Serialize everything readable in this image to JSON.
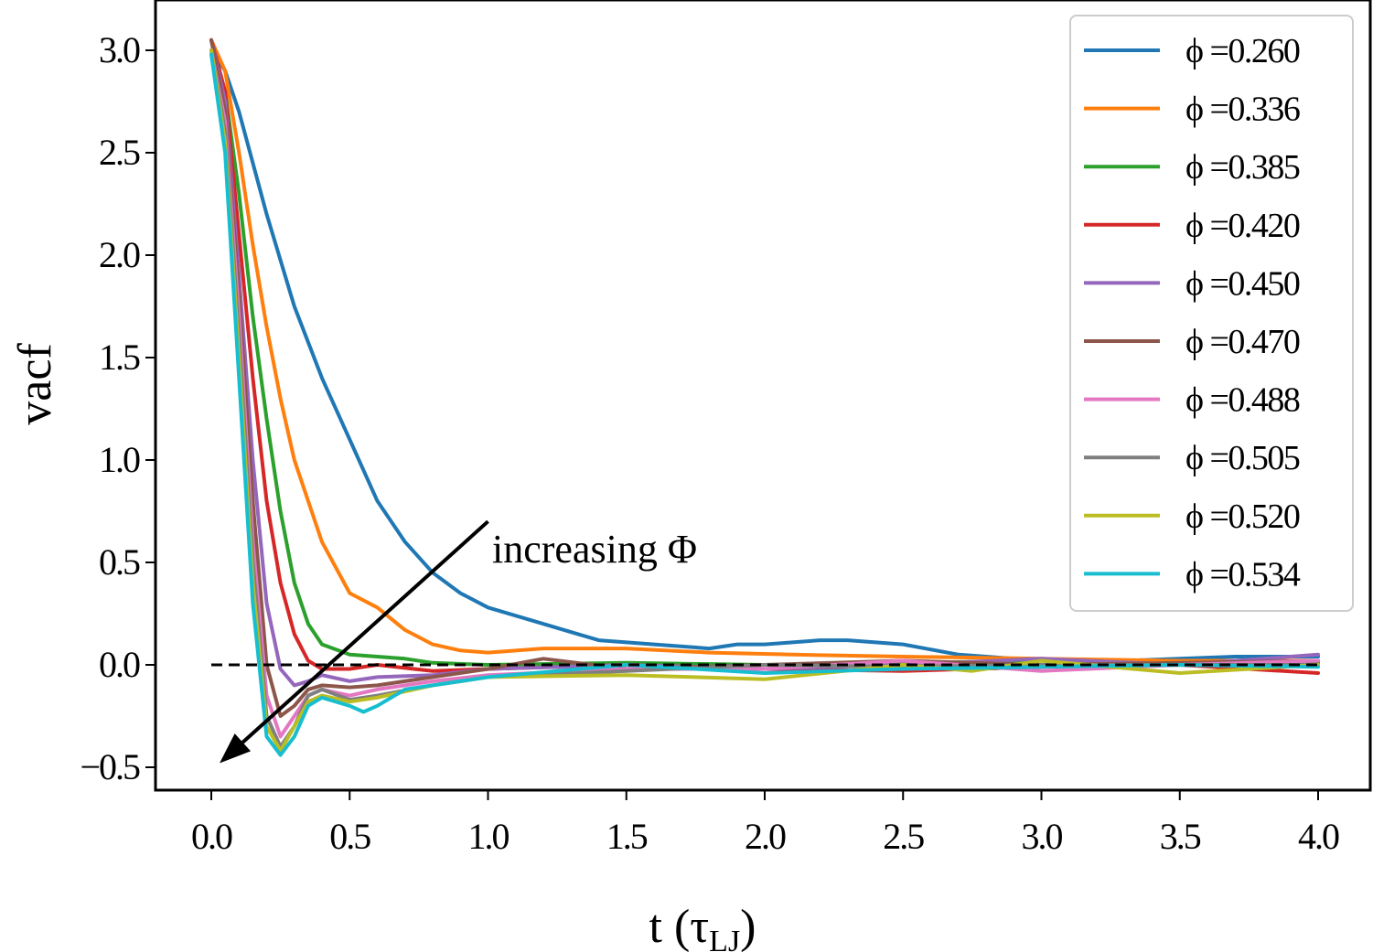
{
  "chart_data": {
    "type": "line",
    "xlabel": "t (τ",
    "xlabel_sub": "LJ",
    "xlabel_close": ")",
    "ylabel": "vacf",
    "xlim": [
      -0.2,
      4.05
    ],
    "ylim": [
      -0.6,
      3.2
    ],
    "x_ticks": [
      0.0,
      0.5,
      1.0,
      1.5,
      2.0,
      2.5,
      3.0,
      3.5,
      4.0
    ],
    "x_tick_labels": [
      "0.0",
      "0.5",
      "1.0",
      "1.5",
      "2.0",
      "2.5",
      "3.0",
      "3.5",
      "4.0"
    ],
    "y_ticks": [
      -0.5,
      0.0,
      0.5,
      1.0,
      1.5,
      2.0,
      2.5,
      3.0
    ],
    "y_tick_labels": [
      "−0.5",
      "0.0",
      "0.5",
      "1.0",
      "1.5",
      "2.0",
      "2.5",
      "3.0"
    ],
    "grid": false,
    "legend_position": "top-right",
    "reference_line": {
      "y": 0.0,
      "style": "dashed",
      "color": "#000000",
      "x_range": [
        0.0,
        4.0
      ]
    },
    "annotation": {
      "text": "increasing Φ",
      "arrow_from": [
        1.0,
        0.7
      ],
      "arrow_to": [
        0.03,
        -0.48
      ]
    },
    "series": [
      {
        "name": "ϕ =0.260",
        "color": "#1f77b4",
        "x": [
          0,
          0.05,
          0.1,
          0.15,
          0.2,
          0.3,
          0.4,
          0.5,
          0.6,
          0.7,
          0.8,
          0.9,
          1.0,
          1.2,
          1.4,
          1.6,
          1.8,
          1.9,
          2.0,
          2.2,
          2.3,
          2.5,
          2.7,
          2.9,
          3.1,
          3.3,
          3.5,
          3.7,
          4.0
        ],
        "y": [
          3.0,
          2.9,
          2.7,
          2.45,
          2.2,
          1.75,
          1.4,
          1.1,
          0.8,
          0.6,
          0.45,
          0.35,
          0.28,
          0.2,
          0.12,
          0.1,
          0.08,
          0.1,
          0.1,
          0.12,
          0.12,
          0.1,
          0.05,
          0.03,
          0.02,
          0.02,
          0.03,
          0.04,
          0.04
        ]
      },
      {
        "name": "ϕ =0.336",
        "color": "#ff7f0e",
        "x": [
          0,
          0.05,
          0.1,
          0.15,
          0.2,
          0.25,
          0.3,
          0.4,
          0.5,
          0.6,
          0.7,
          0.8,
          0.9,
          1.0,
          1.2,
          1.5,
          1.8,
          2.1,
          2.5,
          3.0,
          3.5,
          4.0
        ],
        "y": [
          3.05,
          2.9,
          2.5,
          2.05,
          1.65,
          1.3,
          1.0,
          0.6,
          0.35,
          0.28,
          0.17,
          0.1,
          0.07,
          0.06,
          0.08,
          0.08,
          0.06,
          0.05,
          0.04,
          0.03,
          0.02,
          0.02
        ]
      },
      {
        "name": "ϕ =0.385",
        "color": "#2ca02c",
        "x": [
          0,
          0.05,
          0.1,
          0.15,
          0.2,
          0.25,
          0.3,
          0.35,
          0.4,
          0.5,
          0.6,
          0.7,
          0.8,
          1.0,
          1.5,
          2.0,
          2.5,
          3.0,
          3.5,
          4.0
        ],
        "y": [
          3.0,
          2.8,
          2.3,
          1.7,
          1.2,
          0.75,
          0.4,
          0.2,
          0.1,
          0.05,
          0.04,
          0.03,
          0.01,
          0.0,
          0.01,
          0.0,
          0.01,
          0.02,
          0.0,
          0.01
        ]
      },
      {
        "name": "ϕ =0.420",
        "color": "#d62728",
        "x": [
          0,
          0.05,
          0.1,
          0.15,
          0.2,
          0.25,
          0.3,
          0.35,
          0.4,
          0.5,
          0.6,
          0.8,
          1.0,
          1.5,
          2.0,
          2.5,
          3.0,
          3.5,
          4.0
        ],
        "y": [
          3.05,
          2.8,
          2.1,
          1.4,
          0.8,
          0.4,
          0.15,
          0.02,
          -0.02,
          -0.02,
          0.0,
          -0.03,
          -0.02,
          0.0,
          -0.02,
          -0.03,
          -0.01,
          0.0,
          -0.04
        ]
      },
      {
        "name": "ϕ =0.450",
        "color": "#9467bd",
        "x": [
          0,
          0.05,
          0.1,
          0.15,
          0.2,
          0.25,
          0.3,
          0.35,
          0.4,
          0.5,
          0.6,
          0.8,
          1.0,
          1.5,
          2.0,
          2.5,
          3.0,
          3.5,
          4.0
        ],
        "y": [
          3.05,
          2.75,
          1.9,
          1.0,
          0.3,
          -0.02,
          -0.1,
          -0.08,
          -0.05,
          -0.08,
          -0.06,
          -0.05,
          -0.02,
          0.0,
          -0.02,
          0.0,
          0.03,
          0.0,
          0.05
        ]
      },
      {
        "name": "ϕ =0.470",
        "color": "#8c564b",
        "x": [
          0,
          0.05,
          0.1,
          0.15,
          0.2,
          0.25,
          0.3,
          0.35,
          0.4,
          0.5,
          0.6,
          0.8,
          1.0,
          1.2,
          1.5,
          2.0,
          2.5,
          3.0,
          3.5,
          4.0
        ],
        "y": [
          3.05,
          2.7,
          1.8,
          0.8,
          0.0,
          -0.25,
          -0.2,
          -0.12,
          -0.1,
          -0.11,
          -0.1,
          -0.06,
          -0.02,
          0.03,
          -0.02,
          0.0,
          0.02,
          0.0,
          0.01,
          0.02
        ]
      },
      {
        "name": "ϕ =0.488",
        "color": "#e377c2",
        "x": [
          0,
          0.05,
          0.1,
          0.15,
          0.2,
          0.25,
          0.3,
          0.35,
          0.4,
          0.5,
          0.6,
          0.8,
          1.0,
          1.5,
          2.0,
          2.5,
          3.0,
          3.5,
          4.0
        ],
        "y": [
          3.0,
          2.65,
          1.7,
          0.6,
          -0.15,
          -0.35,
          -0.25,
          -0.15,
          -0.12,
          -0.15,
          -0.12,
          -0.08,
          -0.05,
          -0.02,
          -0.02,
          0.02,
          -0.03,
          0.0,
          0.02
        ]
      },
      {
        "name": "ϕ =0.505",
        "color": "#7f7f7f",
        "x": [
          0,
          0.05,
          0.1,
          0.15,
          0.2,
          0.25,
          0.3,
          0.35,
          0.4,
          0.5,
          0.6,
          0.8,
          1.0,
          1.5,
          2.0,
          2.5,
          3.0,
          3.5,
          4.0
        ],
        "y": [
          3.0,
          2.6,
          1.6,
          0.5,
          -0.25,
          -0.4,
          -0.3,
          -0.15,
          -0.12,
          -0.17,
          -0.15,
          -0.1,
          -0.06,
          -0.03,
          0.0,
          -0.01,
          0.0,
          0.0,
          0.0
        ]
      },
      {
        "name": "ϕ =0.520",
        "color": "#bcbd22",
        "x": [
          0,
          0.05,
          0.1,
          0.15,
          0.2,
          0.25,
          0.3,
          0.35,
          0.4,
          0.5,
          0.6,
          0.8,
          1.0,
          1.5,
          2.0,
          2.5,
          2.75,
          3.0,
          3.5,
          4.0
        ],
        "y": [
          3.0,
          2.55,
          1.5,
          0.4,
          -0.3,
          -0.42,
          -0.3,
          -0.18,
          -0.15,
          -0.18,
          -0.16,
          -0.1,
          -0.06,
          -0.05,
          -0.07,
          0.0,
          -0.03,
          0.02,
          -0.04,
          0.0
        ]
      },
      {
        "name": "ϕ =0.534",
        "color": "#17becf",
        "x": [
          0,
          0.05,
          0.1,
          0.15,
          0.2,
          0.25,
          0.3,
          0.35,
          0.4,
          0.5,
          0.55,
          0.6,
          0.7,
          0.8,
          1.0,
          1.5,
          2.0,
          2.5,
          3.0,
          3.5,
          4.0
        ],
        "y": [
          2.98,
          2.5,
          1.4,
          0.3,
          -0.35,
          -0.44,
          -0.35,
          -0.2,
          -0.16,
          -0.2,
          -0.23,
          -0.2,
          -0.12,
          -0.1,
          -0.06,
          0.0,
          -0.04,
          -0.02,
          -0.01,
          0.0,
          -0.01
        ]
      }
    ]
  }
}
